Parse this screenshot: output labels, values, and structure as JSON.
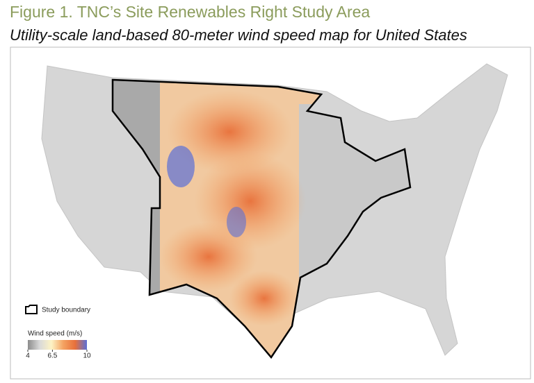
{
  "header": {
    "title": "Figure 1. TNC’s Site Renewables Right Study Area",
    "subtitle": "Utility-scale land-based 80-meter wind speed map for United States"
  },
  "legend": {
    "boundary_label": "Study boundary",
    "colorbar": {
      "title": "Wind speed (m/s)",
      "range": [
        4,
        10
      ],
      "ticks": [
        4,
        6.5,
        10
      ],
      "colors": [
        "#8c8c8c",
        "#d9d9d9",
        "#fdf3c4",
        "#f4a261",
        "#e8703a",
        "#5b6fd6"
      ]
    }
  }
}
